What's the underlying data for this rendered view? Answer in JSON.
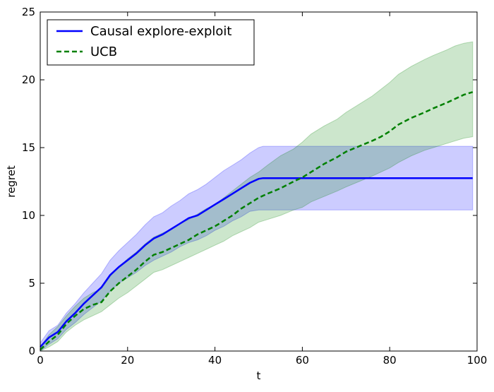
{
  "chart_data": {
    "type": "line",
    "title": "",
    "xlabel": "t",
    "ylabel": "regret",
    "xlim": [
      0,
      100
    ],
    "ylim": [
      0,
      25
    ],
    "xticks": [
      0,
      20,
      40,
      60,
      80,
      100
    ],
    "yticks": [
      0,
      5,
      10,
      15,
      20,
      25
    ],
    "xtick_labels": [
      "0",
      "20",
      "40",
      "60",
      "80",
      "100"
    ],
    "ytick_labels": [
      "0",
      "5",
      "10",
      "15",
      "20",
      "25"
    ],
    "grid": false,
    "legend_position": "top-left",
    "series": [
      {
        "name": "Causal explore-exploit",
        "color": "#0000ff",
        "style": "solid",
        "band_color": "#0000ff",
        "band_opacity": 0.2,
        "x": [
          0,
          2,
          4,
          6,
          8,
          10,
          12,
          14,
          16,
          18,
          20,
          22,
          24,
          26,
          28,
          30,
          32,
          34,
          36,
          38,
          40,
          42,
          44,
          46,
          48,
          50,
          51,
          55,
          60,
          65,
          70,
          75,
          80,
          85,
          90,
          95,
          99
        ],
        "y": [
          0.3,
          1.0,
          1.4,
          2.2,
          2.8,
          3.5,
          4.1,
          4.7,
          5.6,
          6.2,
          6.7,
          7.2,
          7.8,
          8.3,
          8.6,
          9.0,
          9.4,
          9.8,
          10.0,
          10.4,
          10.8,
          11.2,
          11.6,
          12.0,
          12.4,
          12.7,
          12.75,
          12.75,
          12.75,
          12.75,
          12.75,
          12.75,
          12.75,
          12.75,
          12.75,
          12.75,
          12.75
        ],
        "lower": [
          0.0,
          0.5,
          0.9,
          1.6,
          2.1,
          2.7,
          3.2,
          3.7,
          4.4,
          5.0,
          5.4,
          5.8,
          6.3,
          6.7,
          7.0,
          7.3,
          7.7,
          8.0,
          8.2,
          8.5,
          8.9,
          9.2,
          9.6,
          9.9,
          10.3,
          10.4,
          10.4,
          10.4,
          10.4,
          10.4,
          10.4,
          10.4,
          10.4,
          10.4,
          10.4,
          10.4,
          10.4
        ],
        "upper": [
          0.6,
          1.5,
          1.9,
          2.8,
          3.5,
          4.3,
          5.0,
          5.7,
          6.7,
          7.4,
          8.0,
          8.6,
          9.3,
          9.9,
          10.2,
          10.7,
          11.1,
          11.6,
          11.9,
          12.3,
          12.8,
          13.3,
          13.7,
          14.1,
          14.6,
          15.0,
          15.1,
          15.1,
          15.1,
          15.1,
          15.1,
          15.1,
          15.1,
          15.1,
          15.1,
          15.1,
          15.1
        ]
      },
      {
        "name": "UCB",
        "color": "#008000",
        "style": "dashed",
        "band_color": "#008000",
        "band_opacity": 0.2,
        "x": [
          0,
          2,
          4,
          6,
          8,
          10,
          12,
          14,
          16,
          18,
          20,
          22,
          24,
          26,
          28,
          30,
          32,
          34,
          36,
          38,
          40,
          42,
          44,
          46,
          48,
          50,
          52,
          55,
          58,
          60,
          62,
          65,
          68,
          70,
          73,
          76,
          78,
          80,
          82,
          85,
          88,
          90,
          93,
          95,
          97,
          99
        ],
        "y": [
          0.1,
          0.7,
          1.2,
          2.0,
          2.6,
          3.1,
          3.4,
          3.6,
          4.4,
          5.0,
          5.5,
          6.0,
          6.6,
          7.1,
          7.3,
          7.6,
          7.9,
          8.2,
          8.6,
          8.9,
          9.2,
          9.6,
          10.0,
          10.5,
          10.9,
          11.3,
          11.6,
          12.0,
          12.5,
          12.8,
          13.2,
          13.8,
          14.3,
          14.7,
          15.1,
          15.5,
          15.8,
          16.2,
          16.7,
          17.2,
          17.6,
          17.9,
          18.3,
          18.6,
          18.9,
          19.1
        ],
        "lower": [
          0.0,
          0.3,
          0.7,
          1.4,
          1.9,
          2.3,
          2.6,
          2.9,
          3.4,
          3.9,
          4.3,
          4.8,
          5.3,
          5.8,
          6.0,
          6.3,
          6.6,
          6.9,
          7.2,
          7.5,
          7.8,
          8.1,
          8.5,
          8.8,
          9.1,
          9.5,
          9.7,
          10.0,
          10.4,
          10.6,
          11.0,
          11.4,
          11.8,
          12.1,
          12.5,
          12.9,
          13.2,
          13.5,
          13.9,
          14.4,
          14.8,
          15.0,
          15.3,
          15.5,
          15.7,
          15.8
        ],
        "upper": [
          0.3,
          1.2,
          1.8,
          2.6,
          3.3,
          3.9,
          4.3,
          4.6,
          5.5,
          6.2,
          6.8,
          7.3,
          7.9,
          8.4,
          8.7,
          9.0,
          9.4,
          9.7,
          10.1,
          10.5,
          10.8,
          11.3,
          11.8,
          12.3,
          12.8,
          13.2,
          13.7,
          14.4,
          14.9,
          15.4,
          16.0,
          16.6,
          17.1,
          17.6,
          18.2,
          18.8,
          19.3,
          19.8,
          20.4,
          21.0,
          21.5,
          21.8,
          22.2,
          22.5,
          22.7,
          22.8
        ]
      }
    ]
  }
}
